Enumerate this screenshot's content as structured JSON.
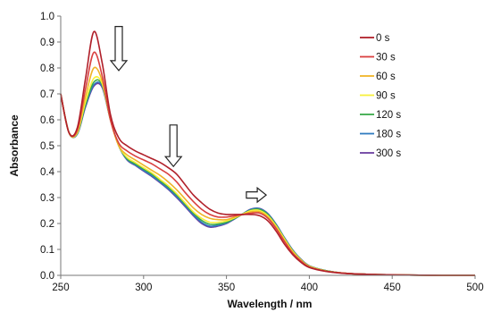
{
  "chart_data": {
    "type": "line",
    "title": "",
    "xlabel": "Wavelength / nm",
    "ylabel": "Absorbance",
    "xlim": [
      250,
      500
    ],
    "ylim": [
      0.0,
      1.0
    ],
    "x_ticks": [
      "250",
      "300",
      "350",
      "400",
      "450",
      "500"
    ],
    "y_ticks": [
      "0.0",
      "0.1",
      "0.2",
      "0.3",
      "0.4",
      "0.5",
      "0.6",
      "0.7",
      "0.8",
      "0.9",
      "1.0"
    ],
    "grid": false,
    "legend_position": "top-right",
    "annotations": [
      {
        "type": "arrow",
        "direction": "down",
        "x": 285,
        "y_top": 0.96,
        "y_bottom": 0.79
      },
      {
        "type": "arrow",
        "direction": "down",
        "x": 318,
        "y_top": 0.58,
        "y_bottom": 0.42
      },
      {
        "type": "arrow",
        "direction": "right",
        "x_left": 362,
        "x_right": 374,
        "y": 0.31
      }
    ],
    "x": [
      250,
      255,
      260,
      265,
      270,
      275,
      280,
      285,
      290,
      295,
      300,
      305,
      310,
      315,
      320,
      325,
      330,
      335,
      340,
      345,
      350,
      355,
      360,
      365,
      370,
      375,
      380,
      385,
      390,
      395,
      400,
      410,
      420,
      430,
      440,
      450,
      460,
      480,
      500
    ],
    "series": [
      {
        "name": "0 s",
        "color": "#b0202a",
        "values": [
          0.7,
          0.55,
          0.57,
          0.76,
          0.94,
          0.82,
          0.62,
          0.53,
          0.5,
          0.48,
          0.465,
          0.45,
          0.435,
          0.415,
          0.39,
          0.35,
          0.31,
          0.28,
          0.255,
          0.24,
          0.235,
          0.235,
          0.235,
          0.235,
          0.23,
          0.21,
          0.17,
          0.12,
          0.08,
          0.05,
          0.03,
          0.015,
          0.008,
          0.005,
          0.003,
          0.002,
          0.001,
          0.0,
          0.0
        ]
      },
      {
        "name": "30 s",
        "color": "#d94040",
        "values": [
          0.7,
          0.55,
          0.56,
          0.72,
          0.86,
          0.77,
          0.6,
          0.51,
          0.48,
          0.46,
          0.445,
          0.43,
          0.41,
          0.39,
          0.36,
          0.32,
          0.285,
          0.255,
          0.235,
          0.225,
          0.225,
          0.23,
          0.235,
          0.24,
          0.24,
          0.22,
          0.18,
          0.13,
          0.085,
          0.055,
          0.032,
          0.016,
          0.009,
          0.005,
          0.003,
          0.002,
          0.001,
          0.0,
          0.0
        ]
      },
      {
        "name": "60 s",
        "color": "#f0b429",
        "values": [
          0.7,
          0.55,
          0.555,
          0.69,
          0.8,
          0.75,
          0.6,
          0.5,
          0.465,
          0.445,
          0.425,
          0.405,
          0.385,
          0.36,
          0.33,
          0.295,
          0.26,
          0.235,
          0.22,
          0.215,
          0.215,
          0.225,
          0.235,
          0.245,
          0.245,
          0.225,
          0.185,
          0.135,
          0.09,
          0.057,
          0.034,
          0.017,
          0.009,
          0.005,
          0.003,
          0.002,
          0.001,
          0.0,
          0.0
        ]
      },
      {
        "name": "90 s",
        "color": "#f7f03c",
        "values": [
          0.7,
          0.55,
          0.55,
          0.67,
          0.76,
          0.74,
          0.6,
          0.5,
          0.455,
          0.435,
          0.415,
          0.395,
          0.37,
          0.345,
          0.315,
          0.28,
          0.245,
          0.22,
          0.205,
          0.205,
          0.21,
          0.222,
          0.237,
          0.25,
          0.25,
          0.23,
          0.19,
          0.14,
          0.093,
          0.059,
          0.035,
          0.017,
          0.009,
          0.005,
          0.003,
          0.002,
          0.001,
          0.0,
          0.0
        ]
      },
      {
        "name": "120 s",
        "color": "#3aaa4a",
        "values": [
          0.7,
          0.55,
          0.548,
          0.66,
          0.745,
          0.735,
          0.6,
          0.5,
          0.45,
          0.43,
          0.41,
          0.39,
          0.365,
          0.34,
          0.31,
          0.275,
          0.24,
          0.212,
          0.197,
          0.198,
          0.205,
          0.22,
          0.237,
          0.252,
          0.254,
          0.234,
          0.193,
          0.142,
          0.095,
          0.06,
          0.036,
          0.018,
          0.009,
          0.005,
          0.003,
          0.002,
          0.001,
          0.0,
          0.0
        ]
      },
      {
        "name": "180 s",
        "color": "#2f7bbf",
        "values": [
          0.7,
          0.55,
          0.546,
          0.655,
          0.735,
          0.73,
          0.6,
          0.5,
          0.447,
          0.426,
          0.405,
          0.384,
          0.36,
          0.334,
          0.304,
          0.27,
          0.234,
          0.205,
          0.19,
          0.193,
          0.202,
          0.219,
          0.238,
          0.255,
          0.257,
          0.237,
          0.196,
          0.144,
          0.097,
          0.061,
          0.036,
          0.018,
          0.009,
          0.005,
          0.003,
          0.002,
          0.001,
          0.0,
          0.0
        ]
      },
      {
        "name": "300 s",
        "color": "#6b3fa0",
        "values": [
          0.7,
          0.55,
          0.545,
          0.65,
          0.73,
          0.725,
          0.6,
          0.5,
          0.445,
          0.424,
          0.402,
          0.381,
          0.357,
          0.331,
          0.3,
          0.266,
          0.23,
          0.2,
          0.186,
          0.19,
          0.2,
          0.218,
          0.238,
          0.256,
          0.258,
          0.238,
          0.197,
          0.145,
          0.098,
          0.062,
          0.037,
          0.018,
          0.009,
          0.005,
          0.003,
          0.002,
          0.001,
          0.0,
          0.0
        ]
      }
    ]
  }
}
